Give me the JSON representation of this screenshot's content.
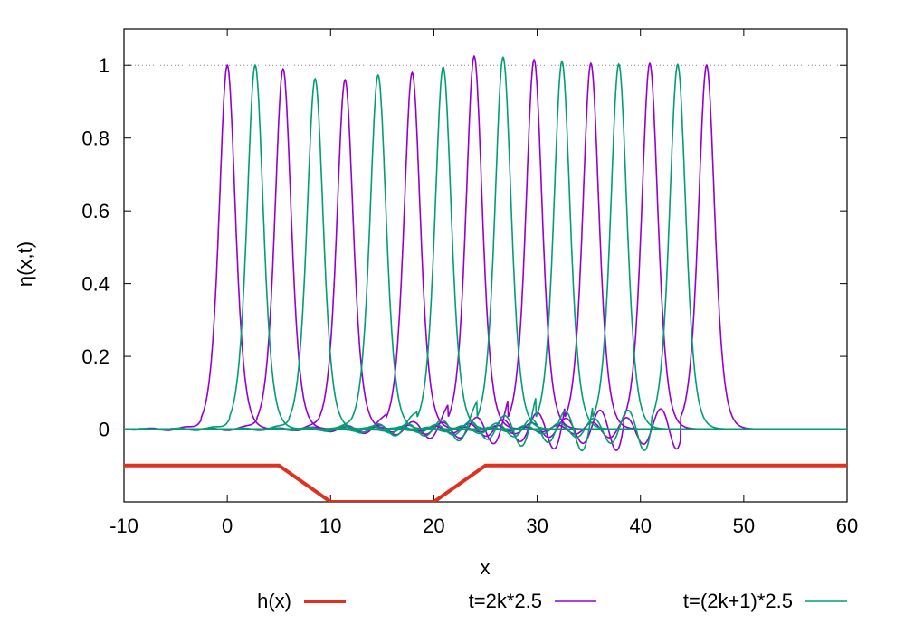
{
  "chart_data": {
    "type": "line",
    "title": "",
    "xlabel": "x",
    "ylabel": "η(x,t)",
    "xlim": [
      -10,
      60
    ],
    "ylim": [
      -0.2,
      1.1
    ],
    "xticks": [
      -10,
      0,
      10,
      20,
      30,
      40,
      50,
      60
    ],
    "xtick_labels": [
      "-10",
      "0",
      "10",
      "20",
      "30",
      "40",
      "50",
      "60"
    ],
    "yticks": [
      0,
      0.2,
      0.4,
      0.6,
      0.8,
      1
    ],
    "ytick_labels": [
      "0",
      "0.2",
      "0.4",
      "0.6",
      "0.8",
      "1"
    ],
    "reference_line": {
      "y": 1,
      "style": "dotted"
    },
    "legend_position": "bottom",
    "colors": {
      "h": "#e0301e",
      "even": "#9400d3",
      "odd": "#009e73",
      "grid": "#888888"
    },
    "bathymetry": {
      "name": "h(x)",
      "x": [
        -10,
        5,
        10,
        20,
        25,
        60
      ],
      "y": [
        -0.1,
        -0.1,
        -0.2,
        -0.2,
        -0.1,
        -0.1
      ]
    },
    "series": [
      {
        "name": "t=2k*2.5",
        "peak_x": [
          0,
          5.4,
          11.4,
          17.9,
          23.9,
          29.7,
          35.2,
          40.9,
          46.4
        ],
        "peak_y": [
          1.0,
          0.99,
          0.96,
          0.98,
          1.025,
          1.015,
          1.005,
          1.005,
          1.0
        ]
      },
      {
        "name": "t=(2k+1)*2.5",
        "peak_x": [
          2.7,
          8.5,
          14.6,
          20.9,
          26.7,
          32.4,
          37.9,
          43.6
        ],
        "peak_y": [
          1.0,
          0.963,
          0.973,
          0.995,
          1.022,
          1.01,
          1.003,
          1.002
        ]
      }
    ]
  }
}
